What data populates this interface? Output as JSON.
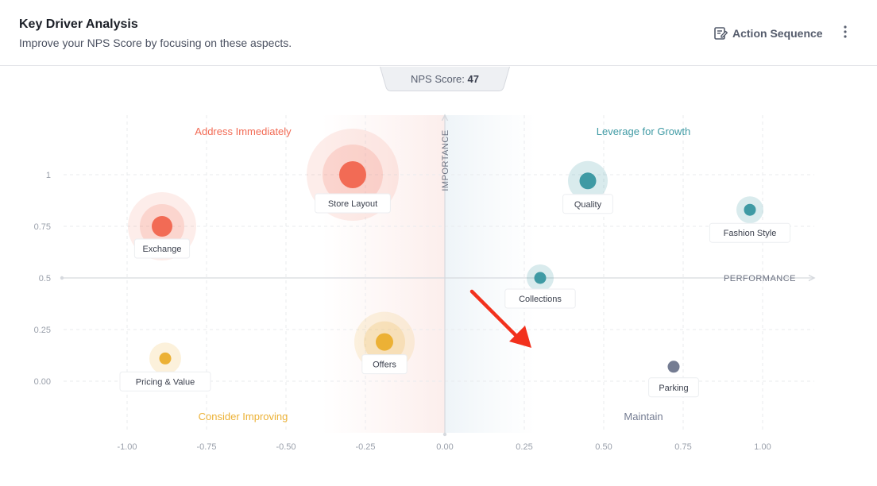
{
  "header": {
    "title": "Key Driver Analysis",
    "subtitle": "Improve your NPS Score by focusing on these aspects.",
    "action_label": "Action Sequence",
    "action_icon": "edit-note-icon",
    "more_icon": "more-vertical-icon"
  },
  "nps": {
    "label": "NPS Score:",
    "value": "47"
  },
  "colors": {
    "red": "#f26b55",
    "teal": "#3f9aa4",
    "amber": "#ecb135",
    "slate": "#747c92",
    "arrow": "#f2311d"
  },
  "chart_data": {
    "type": "scatter",
    "xlabel": "PERFORMANCE",
    "ylabel": "IMPORTANCE",
    "xlim": [
      -1.0,
      1.0
    ],
    "ylim": [
      0.0,
      1.0
    ],
    "x_ticks": [
      "-1.00",
      "-0.75",
      "-0.50",
      "-0.25",
      "0.00",
      "0.25",
      "0.50",
      "0.75",
      "1.00"
    ],
    "y_ticks": [
      "0.00",
      "0.25",
      "0.5",
      "0.75",
      "1"
    ],
    "grid": true,
    "quadrants": {
      "top_left": "Address Immediately",
      "top_right": "Leverage for Growth",
      "bottom_left": "Consider Improving",
      "bottom_right": "Maintain"
    },
    "points": [
      {
        "label": "Store Layout",
        "x": -0.29,
        "y": 1.0,
        "group": "red",
        "rings": 2
      },
      {
        "label": "Exchange",
        "x": -0.89,
        "y": 0.75,
        "group": "red",
        "rings": 2
      },
      {
        "label": "Quality",
        "x": 0.45,
        "y": 0.97,
        "group": "teal",
        "rings": 1
      },
      {
        "label": "Fashion Style",
        "x": 0.96,
        "y": 0.83,
        "group": "teal",
        "rings": 1
      },
      {
        "label": "Collections",
        "x": 0.3,
        "y": 0.5,
        "group": "teal",
        "rings": 1
      },
      {
        "label": "Pricing & Value",
        "x": -0.88,
        "y": 0.11,
        "group": "amber",
        "rings": 1
      },
      {
        "label": "Offers",
        "x": -0.19,
        "y": 0.19,
        "group": "amber",
        "rings": 2
      },
      {
        "label": "Parking",
        "x": 0.72,
        "y": 0.07,
        "group": "slate",
        "rings": 0
      }
    ]
  }
}
